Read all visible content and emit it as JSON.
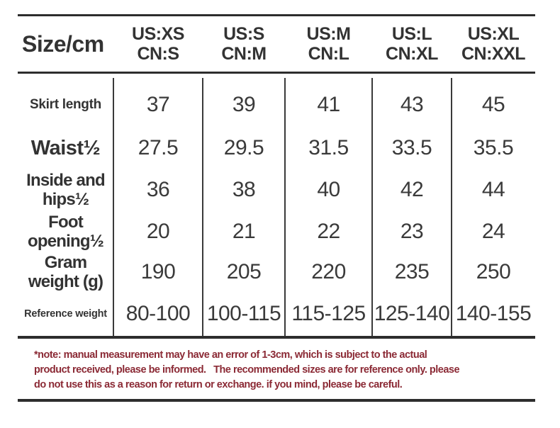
{
  "chart_data": {
    "type": "table",
    "corner_label": "Size/cm",
    "unit": "cm",
    "columns": [
      {
        "us": "US:XS",
        "cn": "CN:S"
      },
      {
        "us": "US:S",
        "cn": "CN:M"
      },
      {
        "us": "US:M",
        "cn": "CN:L"
      },
      {
        "us": "US:L",
        "cn": "CN:XL"
      },
      {
        "us": "US:XL",
        "cn": "CN:XXL"
      }
    ],
    "rows": [
      {
        "label": "Skirt length",
        "values": [
          "37",
          "39",
          "41",
          "43",
          "45"
        ]
      },
      {
        "label": "Waist½",
        "values": [
          "27.5",
          "29.5",
          "31.5",
          "33.5",
          "35.5"
        ]
      },
      {
        "label": "Inside and\nhips½",
        "values": [
          "36",
          "38",
          "40",
          "42",
          "44"
        ]
      },
      {
        "label": "Foot\nopening½",
        "values": [
          "20",
          "21",
          "22",
          "23",
          "24"
        ]
      },
      {
        "label": "Gram\nweight (g)",
        "values": [
          "190",
          "205",
          "220",
          "235",
          "250"
        ]
      },
      {
        "label": "Reference weight",
        "values": [
          "80-100",
          "100-115",
          "115-125",
          "125-140",
          "140-155"
        ]
      }
    ],
    "note_lines": [
      "*note: manual measurement may have an error of 1-3cm, which is subject to the actual",
      "product received, please be informed.   The recommended sizes are for reference only. please",
      "do not use this as a reason for return or exchange. if you mind, please be careful."
    ]
  },
  "colors": {
    "text": "#333333",
    "value_text": "#3a3a3a",
    "line": "#2d2d2d",
    "note_text": "#8b2a35",
    "background": "#ffffff"
  }
}
